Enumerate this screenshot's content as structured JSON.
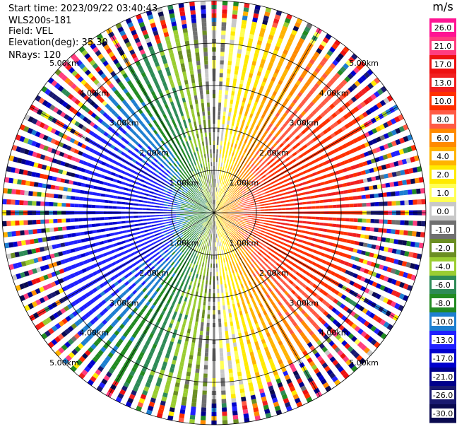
{
  "header": {
    "start_time": "Start time: 2023/09/22 03:40:43",
    "instrument": "WLS200s-181",
    "field": "Field: VEL",
    "elevation": "Elevation(deg): 35.30",
    "nrays": "NRays: 120"
  },
  "chart_data": {
    "type": "heatmap",
    "projection": "polar-ppi",
    "field": "VEL",
    "units": "m/s",
    "nrays": 120,
    "elevation_deg": 35.3,
    "range_rings_km": [
      1.0,
      2.0,
      3.0,
      4.0,
      5.0
    ],
    "range_ring_labels": [
      "1.00km",
      "2.00km",
      "3.00km",
      "4.00km",
      "5.00km"
    ],
    "max_range_km": 5.0,
    "azimuth_spokes_deg": [
      0,
      30,
      60,
      90,
      120,
      150,
      180,
      210,
      240,
      270,
      300,
      330
    ],
    "velocity_pattern": {
      "approaching_azimuth_deg": 270,
      "receding_azimuth_deg": 90,
      "max_abs_velocity_ms": 13.0,
      "noise_begins_km": [
        3.3,
        4.6
      ]
    },
    "colorbar": {
      "label": "m/s",
      "ticks": [
        "26.0",
        "21.0",
        "17.0",
        "13.0",
        "10.0",
        "8.0",
        "6.0",
        "4.0",
        "2.0",
        "1.0",
        "0.0",
        "-1.0",
        "-2.0",
        "-4.0",
        "-6.0",
        "-8.0",
        "-10.0",
        "-13.0",
        "-17.0",
        "-21.0",
        "-26.0",
        "-30.0"
      ],
      "colors": [
        "#ff1493",
        "#ff3d7f",
        "#ee1111",
        "#f12020",
        "#ff3000",
        "#ff5b45",
        "#ff8a00",
        "#ffb300",
        "#ffea00",
        "#ffff55",
        "#c8c8c8",
        "#707070",
        "#6b8e23",
        "#9acd32",
        "#2e8b57",
        "#228b22",
        "#1e7fd0",
        "#2020ff",
        "#0000cd",
        "#00008b",
        "#191970",
        "#0a0a50"
      ]
    }
  }
}
